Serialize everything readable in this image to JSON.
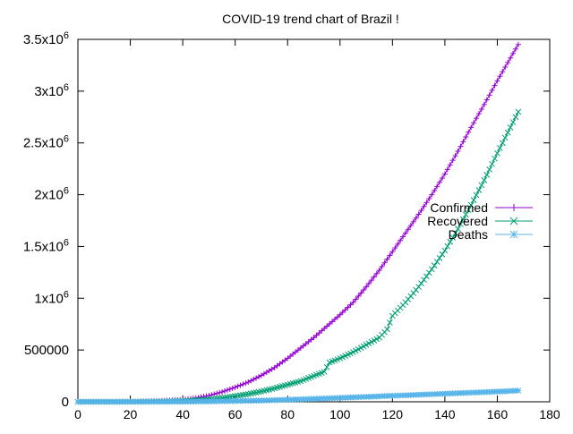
{
  "chart_data": {
    "type": "line",
    "title": "COVID-19 trend chart of Brazil !",
    "xlabel": "",
    "ylabel": "",
    "xlim": [
      0,
      180
    ],
    "ylim": [
      0,
      3500000
    ],
    "x_ticks": [
      0,
      20,
      40,
      60,
      80,
      100,
      120,
      140,
      160,
      180
    ],
    "x_tick_labels": [
      "0",
      "20",
      "40",
      "60",
      "80",
      "100",
      "120",
      "140",
      "160",
      "180"
    ],
    "y_ticks": [
      0,
      500000,
      1000000,
      1500000,
      2000000,
      2500000,
      3000000,
      3500000
    ],
    "y_tick_labels": [
      {
        "base": "0",
        "exp": ""
      },
      {
        "base": "500000",
        "exp": ""
      },
      {
        "base": "1x10",
        "exp": "6"
      },
      {
        "base": "1.5x10",
        "exp": "6"
      },
      {
        "base": "2x10",
        "exp": "6"
      },
      {
        "base": "2.5x10",
        "exp": "6"
      },
      {
        "base": "3x10",
        "exp": "6"
      },
      {
        "base": "3.5x10",
        "exp": "6"
      }
    ],
    "grid": false,
    "legend_position": "right",
    "series": [
      {
        "name": "Confirmed",
        "color": "#9400d3",
        "marker": "plus",
        "x": [
          0,
          10,
          20,
          30,
          40,
          45,
          50,
          55,
          60,
          65,
          70,
          75,
          80,
          85,
          90,
          95,
          100,
          105,
          110,
          115,
          120,
          125,
          130,
          135,
          140,
          145,
          150,
          155,
          160,
          165,
          168
        ],
        "values": [
          0,
          1000,
          3000,
          8000,
          20000,
          37000,
          60000,
          95000,
          140000,
          190000,
          255000,
          330000,
          420000,
          520000,
          620000,
          730000,
          840000,
          960000,
          1110000,
          1270000,
          1450000,
          1630000,
          1810000,
          2000000,
          2200000,
          2420000,
          2650000,
          2870000,
          3100000,
          3320000,
          3450000
        ]
      },
      {
        "name": "Recovered",
        "color": "#009e73",
        "marker": "cross",
        "x": [
          0,
          10,
          20,
          30,
          40,
          45,
          50,
          55,
          60,
          65,
          70,
          75,
          80,
          85,
          90,
          94,
          96,
          100,
          105,
          110,
          115,
          118,
          120,
          125,
          130,
          135,
          140,
          145,
          150,
          155,
          160,
          165,
          168
        ],
        "values": [
          0,
          0,
          500,
          2000,
          8000,
          15000,
          25000,
          37000,
          55000,
          75000,
          100000,
          130000,
          165000,
          200000,
          250000,
          290000,
          380000,
          420000,
          480000,
          550000,
          620000,
          700000,
          830000,
          960000,
          1110000,
          1280000,
          1460000,
          1670000,
          1900000,
          2140000,
          2400000,
          2650000,
          2800000
        ]
      },
      {
        "name": "Deaths",
        "color": "#56b4e9",
        "marker": "star",
        "x": [
          0,
          20,
          40,
          50,
          60,
          70,
          80,
          90,
          100,
          110,
          120,
          130,
          140,
          150,
          160,
          168
        ],
        "values": [
          0,
          200,
          1300,
          3500,
          7500,
          12000,
          20000,
          28000,
          38000,
          48000,
          58000,
          68000,
          78000,
          88000,
          98000,
          108000
        ]
      }
    ]
  }
}
